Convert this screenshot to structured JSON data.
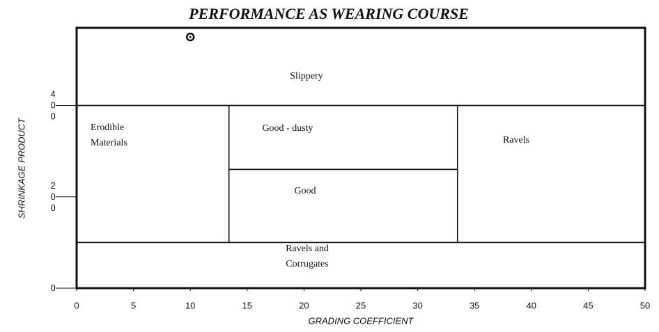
{
  "chart_data": {
    "type": "region",
    "title": "PERFORMANCE AS WEARING COURSE",
    "xlabel": "GRADING COEFFICIENT",
    "ylabel": "SHRINKAGE PRODUCT",
    "xlim": [
      0,
      50
    ],
    "xticks": [
      0,
      5,
      10,
      15,
      20,
      25,
      30,
      35,
      40,
      45,
      50
    ],
    "ylim": [
      0,
      570
    ],
    "yticks": [
      0,
      200,
      400
    ],
    "regions": [
      {
        "label": "Slippery",
        "x": [
          0,
          50
        ],
        "y": [
          400,
          570
        ]
      },
      {
        "label": "Erodible Materials",
        "x": [
          0,
          13.4
        ],
        "y": [
          100,
          400
        ]
      },
      {
        "label": "Good - dusty",
        "x": [
          13.4,
          33.5
        ],
        "y": [
          260,
          400
        ]
      },
      {
        "label": "Good",
        "x": [
          13.4,
          33.5
        ],
        "y": [
          100,
          260
        ]
      },
      {
        "label": "Ravels",
        "x": [
          33.5,
          50
        ],
        "y": [
          100,
          400
        ]
      },
      {
        "label": "Ravels and Corrugates",
        "x": [
          0,
          50
        ],
        "y": [
          0,
          100
        ]
      }
    ],
    "points": {
      "x": [
        10
      ],
      "y": [
        550
      ]
    }
  }
}
